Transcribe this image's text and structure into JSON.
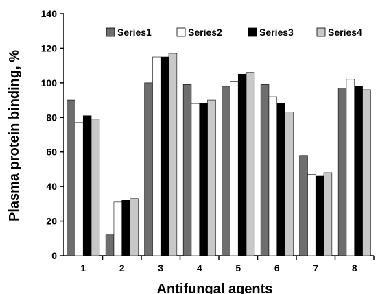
{
  "chart_data": {
    "type": "bar",
    "title": "",
    "xlabel": "Antifungal agents",
    "ylabel": "Plasma protein binding, %",
    "ylim": [
      0,
      140
    ],
    "yticks": [
      "0",
      "20",
      "40",
      "60",
      "80",
      "100",
      "120",
      "140"
    ],
    "categories": [
      "1",
      "2",
      "3",
      "4",
      "5",
      "6",
      "7",
      "8"
    ],
    "grid": false,
    "legend_position": "top",
    "series": [
      {
        "name": "Series1",
        "color": "#6e6e6e",
        "values": [
          90,
          12,
          100,
          99,
          98,
          99,
          58,
          97
        ]
      },
      {
        "name": "Series2",
        "color": "#ffffff",
        "values": [
          77,
          31,
          115,
          88,
          101,
          92,
          47,
          102
        ]
      },
      {
        "name": "Series3",
        "color": "#000000",
        "values": [
          81,
          32,
          115,
          88,
          105,
          88,
          46,
          98
        ]
      },
      {
        "name": "Series4",
        "color": "#c8c8c8",
        "values": [
          79,
          33,
          117,
          90,
          106,
          83,
          48,
          96
        ]
      }
    ]
  }
}
